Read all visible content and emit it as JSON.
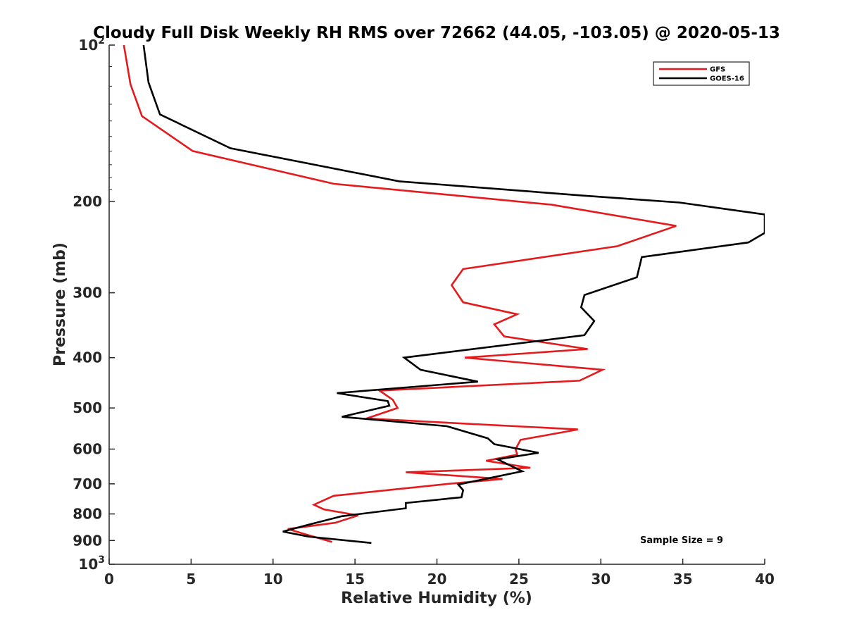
{
  "chart_data": {
    "type": "line",
    "title": "Cloudy Full Disk Weekly RH RMS over 72662 (44.05, -103.05) @ 2020-05-13",
    "xlabel": "Relative Humidity (%)",
    "ylabel": "Pressure (mb)",
    "xlim": [
      0,
      40
    ],
    "ylim": [
      100,
      1000
    ],
    "yscale": "log",
    "y_reversed": true,
    "grid": false,
    "legend_position": "top-right",
    "x_ticks": [
      0,
      5,
      10,
      15,
      20,
      25,
      30,
      35,
      40
    ],
    "y_ticks": [
      {
        "value": 100,
        "label": "10",
        "sup": "2"
      },
      {
        "value": 200,
        "label": "200"
      },
      {
        "value": 300,
        "label": "300"
      },
      {
        "value": 400,
        "label": "400"
      },
      {
        "value": 500,
        "label": "500"
      },
      {
        "value": 600,
        "label": "600"
      },
      {
        "value": 700,
        "label": "700"
      },
      {
        "value": 800,
        "label": "800"
      },
      {
        "value": 900,
        "label": "900"
      },
      {
        "value": 1000,
        "label": "10",
        "sup": "3"
      }
    ],
    "annotation": "Sample Size = 9",
    "series": [
      {
        "name": "GFS",
        "color": "#e41a1c",
        "points": [
          [
            0.9,
            100
          ],
          [
            1.3,
            119
          ],
          [
            2.0,
            137
          ],
          [
            5.1,
            160
          ],
          [
            13.7,
            185
          ],
          [
            27.0,
            203
          ],
          [
            34.6,
            223
          ],
          [
            31.0,
            244
          ],
          [
            21.6,
            270
          ],
          [
            20.9,
            290
          ],
          [
            21.6,
            313
          ],
          [
            24.9,
            330
          ],
          [
            23.5,
            345
          ],
          [
            24.1,
            364
          ],
          [
            29.2,
            385
          ],
          [
            21.7,
            400
          ],
          [
            30.1,
            422
          ],
          [
            28.7,
            443
          ],
          [
            16.5,
            463
          ],
          [
            17.3,
            482
          ],
          [
            17.6,
            500
          ],
          [
            15.7,
            524
          ],
          [
            28.6,
            550
          ],
          [
            25.1,
            576
          ],
          [
            24.8,
            600
          ],
          [
            24.9,
            615
          ],
          [
            23.0,
            632
          ],
          [
            25.7,
            652
          ],
          [
            18.1,
            665
          ],
          [
            24.0,
            685
          ],
          [
            20.7,
            700
          ],
          [
            13.7,
            738
          ],
          [
            12.5,
            768
          ],
          [
            13.1,
            784
          ],
          [
            15.2,
            805
          ],
          [
            13.8,
            832
          ],
          [
            10.9,
            855
          ],
          [
            11.8,
            872
          ],
          [
            13.6,
            906
          ]
        ]
      },
      {
        "name": "GOES-16",
        "color": "#000000",
        "points": [
          [
            2.1,
            100
          ],
          [
            2.4,
            118
          ],
          [
            3.1,
            136
          ],
          [
            7.4,
            158
          ],
          [
            17.7,
            183
          ],
          [
            29.0,
            195
          ],
          [
            34.8,
            201
          ],
          [
            40.0,
            212
          ],
          [
            40.0,
            230
          ],
          [
            39.0,
            240
          ],
          [
            32.5,
            256
          ],
          [
            32.2,
            280
          ],
          [
            29.0,
            303
          ],
          [
            28.8,
            320
          ],
          [
            29.6,
            340
          ],
          [
            29.0,
            362
          ],
          [
            18.0,
            400
          ],
          [
            19.0,
            422
          ],
          [
            22.5,
            445
          ],
          [
            13.9,
            468
          ],
          [
            17.0,
            485
          ],
          [
            17.1,
            495
          ],
          [
            14.2,
            520
          ],
          [
            20.6,
            542
          ],
          [
            23.1,
            572
          ],
          [
            23.5,
            587
          ],
          [
            26.2,
            610
          ],
          [
            23.7,
            628
          ],
          [
            25.2,
            662
          ],
          [
            21.3,
            702
          ],
          [
            21.6,
            720
          ],
          [
            21.5,
            743
          ],
          [
            18.1,
            762
          ],
          [
            18.1,
            780
          ],
          [
            14.2,
            808
          ],
          [
            12.1,
            840
          ],
          [
            10.6,
            865
          ],
          [
            12.2,
            885
          ],
          [
            16.0,
            910
          ]
        ]
      }
    ]
  }
}
